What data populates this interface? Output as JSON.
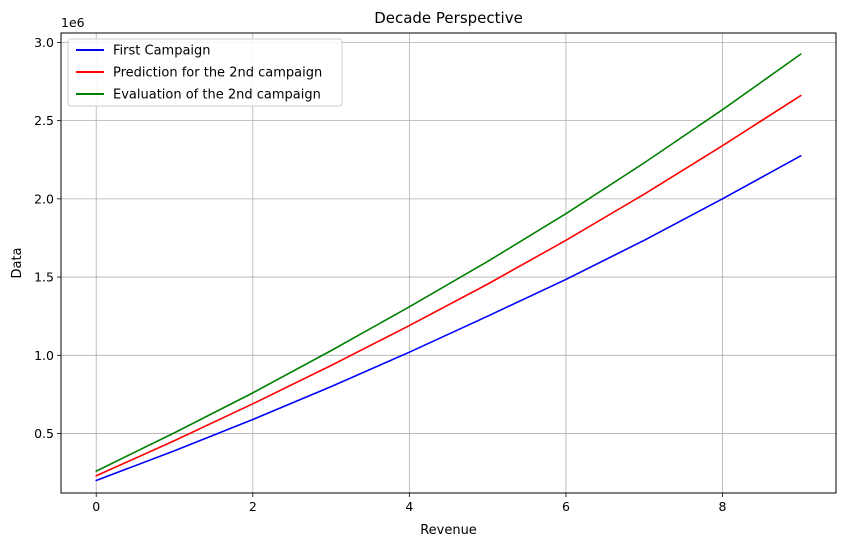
{
  "chart_data": {
    "type": "line",
    "title": "Decade Perspective",
    "xlabel": "Revenue",
    "ylabel": "Data",
    "y_offset_label": "1e6",
    "xlim": [
      -0.45,
      9.45
    ],
    "ylim": [
      0.12,
      3.06
    ],
    "y_scale_note": "values in millions (x1e6)",
    "x": [
      0,
      1,
      2,
      3,
      4,
      5,
      6,
      7,
      8,
      9
    ],
    "x_ticks": [
      0,
      2,
      4,
      6,
      8
    ],
    "x_tick_labels": [
      "0",
      "2",
      "4",
      "6",
      "8"
    ],
    "y_ticks": [
      0.5,
      1.0,
      1.5,
      2.0,
      2.5,
      3.0
    ],
    "y_tick_labels": [
      "0.5",
      "1.0",
      "1.5",
      "2.0",
      "2.5",
      "3.0"
    ],
    "grid": true,
    "legend_position": "top-left",
    "series": [
      {
        "name": "First Campaign",
        "color": "#0000ff",
        "values": [
          0.2,
          0.39,
          0.59,
          0.8,
          1.02,
          1.25,
          1.485,
          1.735,
          2.0,
          2.275
        ]
      },
      {
        "name": "Prediction for the 2nd campaign",
        "color": "#ff0000",
        "values": [
          0.23,
          0.455,
          0.69,
          0.935,
          1.19,
          1.455,
          1.735,
          2.03,
          2.34,
          2.66
        ]
      },
      {
        "name": "Evaluation of the 2nd campaign",
        "color": "#008000",
        "values": [
          0.26,
          0.505,
          0.76,
          1.03,
          1.31,
          1.6,
          1.905,
          2.23,
          2.57,
          2.925
        ]
      }
    ]
  }
}
